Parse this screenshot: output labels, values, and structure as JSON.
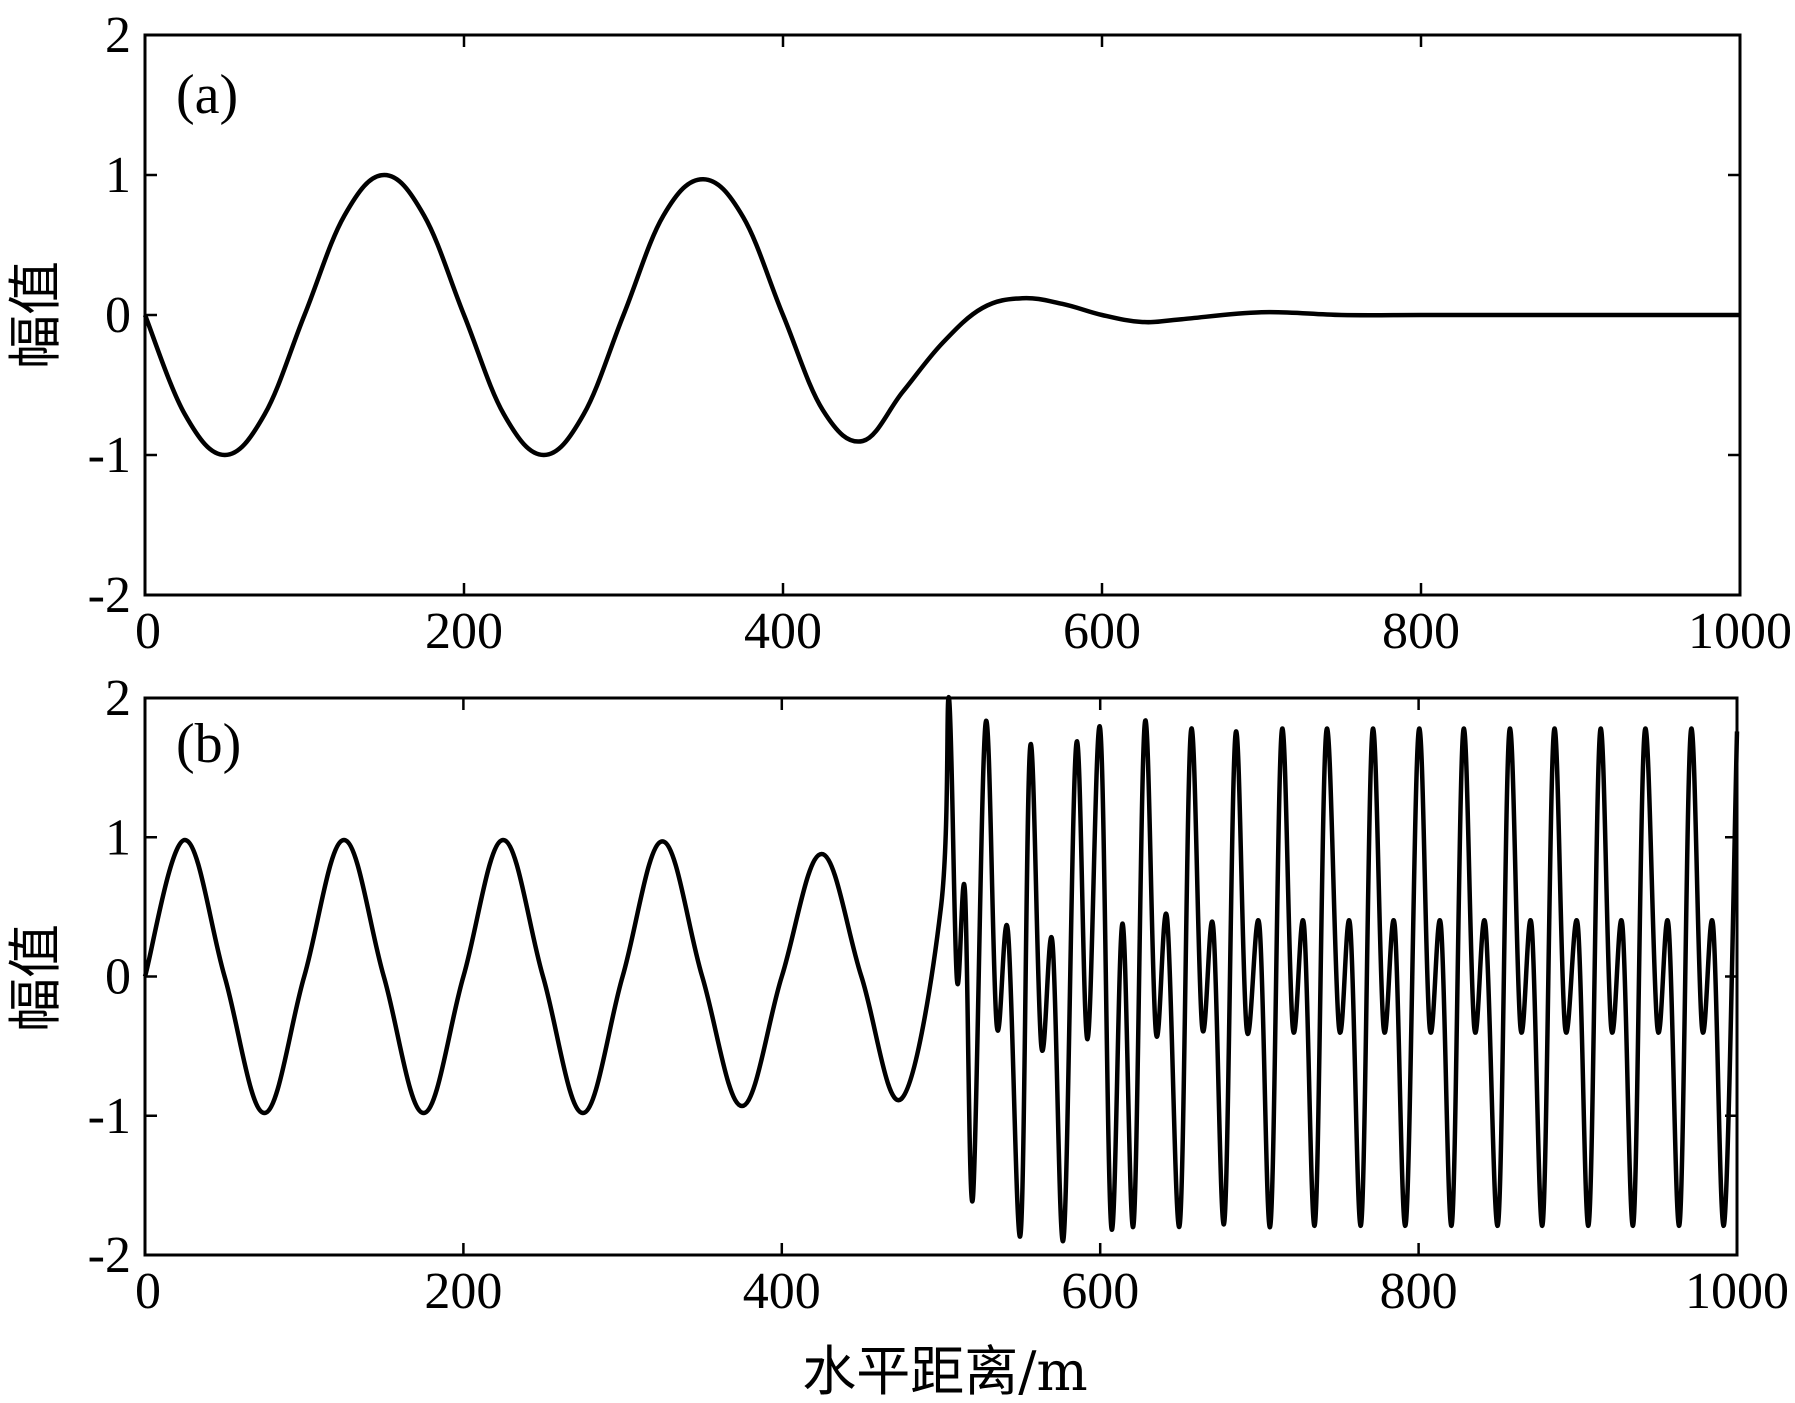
{
  "chart_data": [
    {
      "type": "line",
      "panel_label": "(a)",
      "xlabel": "",
      "ylabel": "幅值",
      "xlim": [
        0,
        1000
      ],
      "ylim": [
        -2,
        2
      ],
      "xticks": [
        "0",
        "200",
        "400",
        "600",
        "800",
        "1000"
      ],
      "yticks": [
        "2",
        "1",
        "0",
        "-1",
        "-2"
      ],
      "grid": false,
      "series": [
        {
          "x": [
            0,
            25,
            50,
            75,
            100,
            125,
            150,
            175,
            200,
            225,
            250,
            275,
            300,
            325,
            350,
            375,
            400,
            425,
            450,
            475,
            500,
            525,
            550,
            575,
            600,
            625,
            650,
            700,
            750,
            800,
            850,
            900,
            1000
          ],
          "y": [
            0,
            -0.71,
            -1.0,
            -0.71,
            0,
            0.71,
            1.0,
            0.71,
            0,
            -0.71,
            -1.0,
            -0.71,
            0,
            0.71,
            0.97,
            0.7,
            0,
            -0.68,
            -0.9,
            -0.55,
            -0.2,
            0.05,
            0.12,
            0.08,
            0.0,
            -0.05,
            -0.03,
            0.02,
            0.0,
            0.0,
            0.0,
            0.0,
            0.0
          ]
        }
      ]
    },
    {
      "type": "line",
      "panel_label": "(b)",
      "xlabel": "水平距离/m",
      "ylabel": "幅值",
      "xlim": [
        0,
        1000
      ],
      "ylim": [
        -2,
        2
      ],
      "xticks": [
        "0",
        "200",
        "400",
        "600",
        "800",
        "1000"
      ],
      "yticks": [
        "2",
        "1",
        "0",
        "-1",
        "-2"
      ],
      "grid": false,
      "series": [
        {
          "x": [
            0,
            25,
            50,
            75,
            100,
            125,
            150,
            175,
            200,
            225,
            250,
            275,
            300,
            325,
            350,
            375,
            400,
            425,
            450,
            475,
            500,
            505,
            510,
            515,
            520,
            528,
            535,
            542,
            550,
            556,
            563,
            570,
            577,
            585,
            592,
            600,
            607,
            614,
            621,
            628,
            635,
            642,
            650,
            657,
            664,
            671,
            678,
            685,
            692,
            700,
            707,
            714,
            721,
            728,
            735,
            742,
            750,
            757,
            764,
            771,
            778,
            785,
            792,
            800,
            807,
            814,
            821,
            828,
            835,
            842,
            850,
            857,
            864,
            871,
            878,
            885,
            892,
            900,
            907,
            914,
            921,
            928,
            935,
            942,
            950,
            957,
            964,
            971,
            978,
            985,
            992,
            1000
          ],
          "y": [
            0,
            0.98,
            0,
            -0.98,
            0,
            0.98,
            0,
            -0.98,
            0,
            0.98,
            0,
            -0.98,
            0,
            0.97,
            0,
            -0.93,
            0,
            0.88,
            0,
            -0.88,
            0.5,
            2.0,
            -0.02,
            0.62,
            -1.6,
            1.82,
            -0.35,
            0.33,
            -1.85,
            1.65,
            -0.5,
            0.25,
            -1.88,
            1.67,
            -0.45,
            1.78,
            -1.8,
            0.38,
            -1.78,
            1.82,
            -0.4,
            0.42,
            -1.78,
            1.76,
            -0.36,
            0.36,
            -1.76,
            1.74,
            -0.38,
            0.37,
            -1.78,
            1.76,
            -0.37,
            0.37,
            -1.77,
            1.76,
            -0.37,
            0.37,
            -1.77,
            1.76,
            -0.37,
            0.37,
            -1.77,
            1.76,
            -0.37,
            0.37,
            -1.77,
            1.76,
            -0.37,
            0.37,
            -1.77,
            1.76,
            -0.37,
            0.37,
            -1.77,
            1.76,
            -0.37,
            0.37,
            -1.77,
            1.76,
            -0.37,
            0.37,
            -1.77,
            1.76,
            -0.37,
            0.37,
            -1.77,
            1.76,
            -0.37,
            0.37,
            -1.77,
            1.76
          ]
        }
      ]
    }
  ]
}
